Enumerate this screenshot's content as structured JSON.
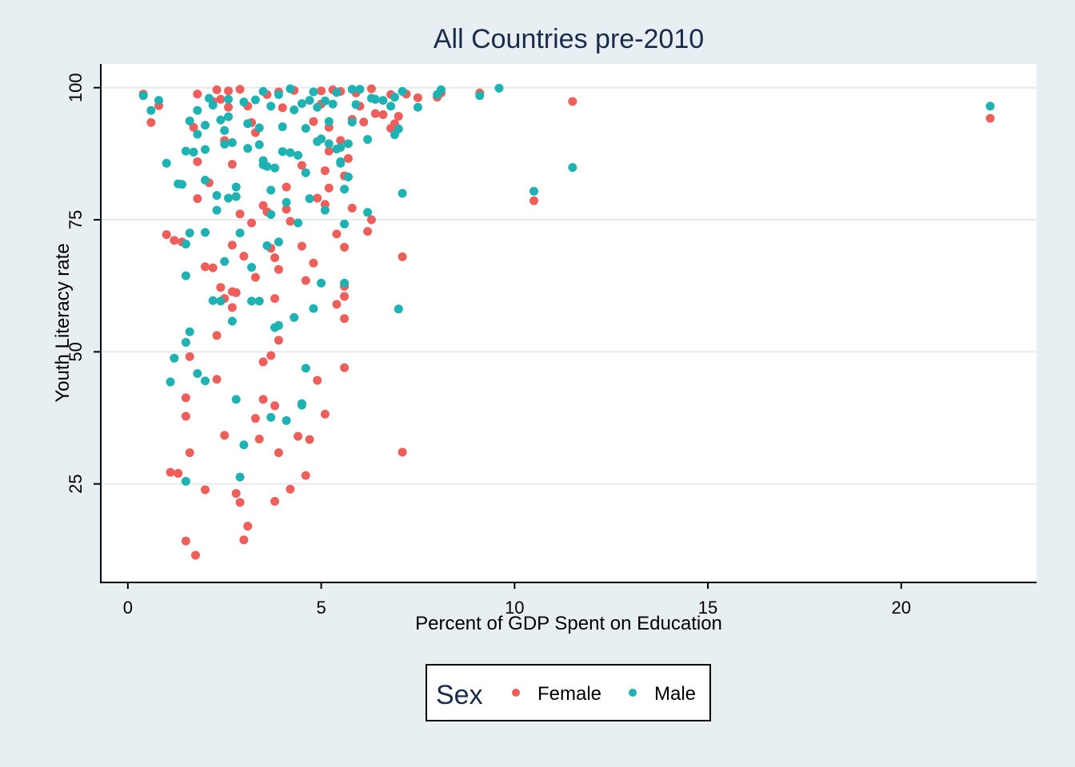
{
  "chart_data": {
    "type": "scatter",
    "title": "All Countries pre-2010",
    "xlabel": "Percent of GDP Spent on Education",
    "ylabel": "Youth Literacy rate",
    "xlim": [
      -0.7,
      23.5
    ],
    "ylim": [
      6.5,
      104.5
    ],
    "xticks": [
      0,
      5,
      10,
      15,
      20
    ],
    "yticks": [
      25,
      50,
      75,
      100
    ],
    "grid": "horizontal",
    "legend": {
      "title": "Sex",
      "position": "bottom-center"
    },
    "series": [
      {
        "name": "Female",
        "color": "#ee5f5b",
        "points": [
          [
            0.4,
            98.8
          ],
          [
            0.6,
            93.4
          ],
          [
            0.8,
            96.6
          ],
          [
            1.0,
            72.2
          ],
          [
            1.1,
            27.2
          ],
          [
            1.2,
            71.1
          ],
          [
            1.3,
            27.0
          ],
          [
            1.4,
            70.8
          ],
          [
            1.5,
            41.3
          ],
          [
            1.5,
            37.8
          ],
          [
            1.5,
            14.2
          ],
          [
            1.6,
            30.9
          ],
          [
            1.6,
            49.1
          ],
          [
            1.7,
            92.5
          ],
          [
            1.8,
            79.0
          ],
          [
            1.8,
            86.0
          ],
          [
            1.8,
            98.8
          ],
          [
            1.75,
            11.5
          ],
          [
            2.0,
            23.9
          ],
          [
            2.0,
            66.1
          ],
          [
            2.1,
            82.0
          ],
          [
            2.2,
            65.9
          ],
          [
            2.2,
            97.4
          ],
          [
            2.3,
            99.6
          ],
          [
            2.3,
            53.1
          ],
          [
            2.3,
            44.8
          ],
          [
            2.4,
            62.2
          ],
          [
            2.4,
            97.8
          ],
          [
            2.5,
            34.2
          ],
          [
            2.5,
            90.0
          ],
          [
            2.5,
            60.1
          ],
          [
            2.6,
            99.4
          ],
          [
            2.6,
            96.3
          ],
          [
            2.7,
            85.5
          ],
          [
            2.7,
            61.4
          ],
          [
            2.7,
            58.4
          ],
          [
            2.7,
            70.2
          ],
          [
            2.8,
            23.2
          ],
          [
            2.8,
            61.2
          ],
          [
            2.9,
            21.5
          ],
          [
            2.9,
            76.1
          ],
          [
            2.9,
            99.7
          ],
          [
            3.0,
            14.4
          ],
          [
            3.0,
            68.1
          ],
          [
            3.1,
            96.5
          ],
          [
            3.1,
            17.0
          ],
          [
            3.2,
            93.4
          ],
          [
            3.2,
            74.4
          ],
          [
            3.3,
            37.4
          ],
          [
            3.3,
            64.1
          ],
          [
            3.3,
            91.5
          ],
          [
            3.4,
            33.5
          ],
          [
            3.5,
            77.7
          ],
          [
            3.5,
            48.1
          ],
          [
            3.5,
            41.0
          ],
          [
            3.6,
            98.7
          ],
          [
            3.7,
            49.3
          ],
          [
            3.6,
            76.5
          ],
          [
            3.7,
            69.6
          ],
          [
            3.8,
            21.7
          ],
          [
            3.8,
            67.8
          ],
          [
            3.8,
            60.1
          ],
          [
            3.8,
            39.8
          ],
          [
            3.9,
            65.6
          ],
          [
            3.9,
            52.2
          ],
          [
            3.9,
            30.9
          ],
          [
            3.9,
            99.2
          ],
          [
            4.0,
            96.2
          ],
          [
            4.1,
            81.2
          ],
          [
            4.1,
            77.0
          ],
          [
            4.2,
            74.7
          ],
          [
            4.2,
            24.0
          ],
          [
            4.3,
            99.5
          ],
          [
            4.4,
            34.0
          ],
          [
            4.5,
            85.3
          ],
          [
            4.5,
            70.0
          ],
          [
            4.6,
            26.6
          ],
          [
            4.6,
            63.5
          ],
          [
            4.7,
            33.4
          ],
          [
            4.8,
            93.6
          ],
          [
            4.8,
            66.8
          ],
          [
            4.9,
            44.6
          ],
          [
            4.9,
            79.1
          ],
          [
            5.0,
            99.4
          ],
          [
            5.0,
            96.9
          ],
          [
            5.1,
            84.3
          ],
          [
            5.1,
            77.9
          ],
          [
            5.1,
            38.2
          ],
          [
            5.2,
            92.5
          ],
          [
            5.2,
            88.0
          ],
          [
            5.2,
            81.0
          ],
          [
            5.3,
            99.6
          ],
          [
            5.4,
            72.3
          ],
          [
            5.4,
            59.0
          ],
          [
            5.5,
            90.0
          ],
          [
            5.5,
            99.3
          ],
          [
            5.6,
            62.4
          ],
          [
            5.6,
            60.5
          ],
          [
            5.6,
            56.3
          ],
          [
            5.6,
            47.0
          ],
          [
            5.6,
            69.8
          ],
          [
            5.6,
            83.3
          ],
          [
            5.7,
            86.6
          ],
          [
            5.8,
            77.2
          ],
          [
            5.8,
            94.0
          ],
          [
            5.9,
            99.0
          ],
          [
            6.0,
            96.5
          ],
          [
            6.1,
            93.5
          ],
          [
            6.2,
            72.8
          ],
          [
            6.3,
            75.0
          ],
          [
            6.3,
            99.8
          ],
          [
            6.4,
            95.1
          ],
          [
            6.6,
            94.9
          ],
          [
            6.8,
            92.3
          ],
          [
            6.8,
            98.7
          ],
          [
            6.9,
            93.2
          ],
          [
            7.0,
            94.6
          ],
          [
            7.1,
            68.0
          ],
          [
            7.1,
            31.0
          ],
          [
            7.2,
            98.8
          ],
          [
            7.5,
            98.1
          ],
          [
            8.0,
            98.2
          ],
          [
            8.1,
            99.0
          ],
          [
            9.1,
            99.0
          ],
          [
            10.5,
            78.6
          ],
          [
            11.5,
            97.4
          ],
          [
            22.3,
            94.2
          ]
        ]
      },
      {
        "name": "Male",
        "color": "#1fb2b2",
        "points": [
          [
            0.4,
            98.5
          ],
          [
            0.6,
            95.7
          ],
          [
            0.8,
            97.6
          ],
          [
            1.0,
            85.7
          ],
          [
            1.1,
            44.3
          ],
          [
            1.2,
            48.8
          ],
          [
            1.3,
            81.8
          ],
          [
            1.4,
            81.7
          ],
          [
            1.5,
            64.4
          ],
          [
            1.5,
            51.8
          ],
          [
            1.5,
            25.5
          ],
          [
            1.5,
            70.4
          ],
          [
            1.5,
            88.0
          ],
          [
            1.6,
            53.8
          ],
          [
            1.6,
            72.5
          ],
          [
            1.6,
            93.7
          ],
          [
            1.7,
            87.8
          ],
          [
            1.8,
            95.7
          ],
          [
            1.8,
            91.2
          ],
          [
            1.8,
            45.9
          ],
          [
            2.0,
            44.5
          ],
          [
            2.0,
            82.5
          ],
          [
            2.0,
            72.6
          ],
          [
            2.0,
            88.3
          ],
          [
            2.0,
            92.9
          ],
          [
            2.1,
            98.0
          ],
          [
            2.2,
            96.7
          ],
          [
            2.2,
            59.7
          ],
          [
            2.3,
            79.6
          ],
          [
            2.3,
            76.8
          ],
          [
            2.4,
            59.6
          ],
          [
            2.4,
            93.9
          ],
          [
            2.5,
            89.3
          ],
          [
            2.5,
            91.9
          ],
          [
            2.5,
            67.1
          ],
          [
            2.6,
            79.1
          ],
          [
            2.6,
            97.8
          ],
          [
            2.6,
            94.5
          ],
          [
            2.7,
            55.8
          ],
          [
            2.7,
            89.6
          ],
          [
            2.8,
            79.4
          ],
          [
            2.8,
            81.2
          ],
          [
            2.8,
            41.0
          ],
          [
            2.9,
            26.3
          ],
          [
            2.9,
            72.5
          ],
          [
            3.0,
            32.4
          ],
          [
            3.0,
            97.3
          ],
          [
            3.1,
            93.2
          ],
          [
            3.1,
            88.5
          ],
          [
            3.2,
            59.6
          ],
          [
            3.2,
            66.0
          ],
          [
            3.3,
            97.7
          ],
          [
            3.4,
            59.6
          ],
          [
            3.4,
            92.4
          ],
          [
            3.4,
            89.2
          ],
          [
            3.5,
            99.3
          ],
          [
            3.5,
            85.4
          ],
          [
            3.5,
            86.2
          ],
          [
            3.6,
            70.1
          ],
          [
            3.6,
            85.1
          ],
          [
            3.7,
            96.5
          ],
          [
            3.7,
            80.6
          ],
          [
            3.7,
            76.0
          ],
          [
            3.7,
            37.6
          ],
          [
            3.8,
            54.6
          ],
          [
            3.8,
            84.8
          ],
          [
            3.9,
            55.0
          ],
          [
            3.9,
            70.8
          ],
          [
            3.9,
            98.7
          ],
          [
            4.0,
            92.6
          ],
          [
            4.0,
            87.9
          ],
          [
            4.1,
            37.0
          ],
          [
            4.1,
            78.3
          ],
          [
            4.2,
            87.7
          ],
          [
            4.2,
            99.8
          ],
          [
            4.3,
            95.8
          ],
          [
            4.3,
            56.5
          ],
          [
            4.4,
            74.4
          ],
          [
            4.4,
            87.2
          ],
          [
            4.5,
            40.2
          ],
          [
            4.5,
            39.9
          ],
          [
            4.5,
            97.0
          ],
          [
            4.6,
            92.3
          ],
          [
            4.6,
            83.9
          ],
          [
            4.6,
            46.9
          ],
          [
            4.7,
            79.0
          ],
          [
            4.7,
            97.6
          ],
          [
            4.8,
            99.2
          ],
          [
            4.8,
            58.2
          ],
          [
            4.9,
            96.3
          ],
          [
            4.9,
            89.8
          ],
          [
            5.0,
            90.3
          ],
          [
            5.0,
            63.0
          ],
          [
            5.1,
            76.8
          ],
          [
            5.1,
            97.5
          ],
          [
            5.2,
            93.6
          ],
          [
            5.2,
            89.4
          ],
          [
            5.3,
            96.9
          ],
          [
            5.4,
            88.4
          ],
          [
            5.4,
            99.1
          ],
          [
            5.5,
            86.0
          ],
          [
            5.5,
            85.7
          ],
          [
            5.5,
            88.7
          ],
          [
            5.6,
            63.0
          ],
          [
            5.6,
            74.2
          ],
          [
            5.6,
            80.8
          ],
          [
            5.7,
            89.4
          ],
          [
            5.7,
            83.1
          ],
          [
            5.8,
            93.5
          ],
          [
            5.8,
            99.7
          ],
          [
            5.9,
            96.8
          ],
          [
            6.0,
            99.7
          ],
          [
            6.2,
            90.2
          ],
          [
            6.2,
            76.4
          ],
          [
            6.3,
            98.0
          ],
          [
            6.4,
            97.8
          ],
          [
            6.6,
            97.6
          ],
          [
            6.8,
            96.5
          ],
          [
            6.9,
            98.2
          ],
          [
            6.9,
            91.1
          ],
          [
            7.0,
            92.2
          ],
          [
            7.0,
            58.1
          ],
          [
            7.1,
            80.0
          ],
          [
            7.1,
            99.3
          ],
          [
            7.5,
            96.3
          ],
          [
            8.0,
            98.7
          ],
          [
            8.1,
            99.6
          ],
          [
            9.1,
            98.5
          ],
          [
            9.6,
            99.9
          ],
          [
            10.5,
            80.4
          ],
          [
            11.5,
            84.9
          ],
          [
            22.3,
            96.5
          ]
        ]
      }
    ]
  }
}
